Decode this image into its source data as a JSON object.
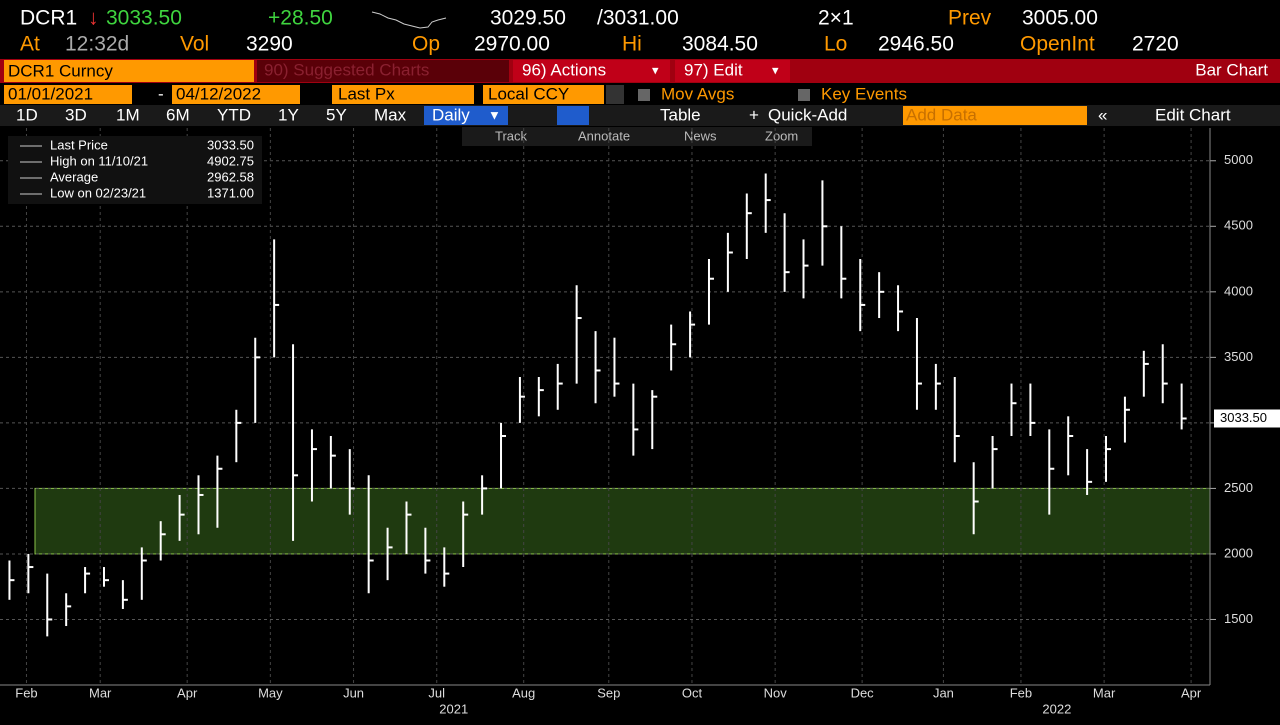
{
  "header": {
    "ticker": "DCR1",
    "last": "3033.50",
    "change": "+28.50",
    "bid": "3029.50",
    "ask": "/3031.00",
    "size": "2×1",
    "prev_label": "Prev",
    "prev": "3005.00",
    "at_label": "At",
    "time": "12:32d",
    "vol_label": "Vol",
    "vol": "3290",
    "open_label": "Op",
    "open": "2970.00",
    "high_label": "Hi",
    "high": "3084.50",
    "low_label": "Lo",
    "low": "2946.50",
    "oi_label": "OpenInt",
    "oi": "2720"
  },
  "toolbar": {
    "security": "DCR1 Curncy",
    "suggested": "90) Suggested Charts",
    "actions": "96) Actions",
    "edit": "97) Edit",
    "chart_type": "Bar Chart",
    "start": "01/01/2021",
    "end": "04/12/2022",
    "field": "Last Px",
    "currency": "Local CCY",
    "mov_avgs": "Mov Avgs",
    "key_events": "Key Events",
    "periods": [
      "1D",
      "3D",
      "1M",
      "6M",
      "YTD",
      "1Y",
      "5Y",
      "Max"
    ],
    "frequency": "Daily",
    "table": "Table",
    "quick_add": "Quick-Add",
    "add_data": "Add Data",
    "edit_chart": "Edit Chart",
    "tools": [
      "Track",
      "Annotate",
      "News",
      "Zoom"
    ]
  },
  "chart_data": {
    "type": "ohlc",
    "color": "#ffffff",
    "zone": {
      "low": 2000,
      "high": 2500,
      "color": "#1f3a10"
    },
    "legend": [
      {
        "label": "Last Price",
        "value": "3033.50"
      },
      {
        "label": "High on 11/10/21",
        "value": "4902.75"
      },
      {
        "label": "Average",
        "value": "2962.58"
      },
      {
        "label": "Low on 02/23/21",
        "value": "1371.00"
      }
    ],
    "highs": [
      1950,
      2000,
      1850,
      1700,
      1900,
      1900,
      1800,
      2050,
      2250,
      2450,
      2600,
      2750,
      3100,
      3650,
      4400,
      3600,
      2950,
      2900,
      2800,
      2600,
      2200,
      2400,
      2200,
      2050,
      2400,
      2600,
      3000,
      3350,
      3350,
      3450,
      4050,
      3700,
      3650,
      3300,
      3250,
      3750,
      3850,
      4250,
      4450,
      4750,
      4902.75,
      4600,
      4400,
      4850,
      4500,
      4250,
      4150,
      4050,
      3800,
      3450,
      3350,
      2700,
      2900,
      3300,
      3300,
      2950,
      3050,
      2800,
      2900,
      3200,
      3550,
      3600,
      3300
    ],
    "lows": [
      1650,
      1700,
      1371,
      1450,
      1700,
      1750,
      1580,
      1650,
      1950,
      2100,
      2150,
      2200,
      2700,
      3000,
      3500,
      2100,
      2400,
      2500,
      2300,
      1700,
      1800,
      2000,
      1850,
      1750,
      1900,
      2300,
      2500,
      3000,
      3050,
      3100,
      3300,
      3150,
      3200,
      2750,
      2800,
      3400,
      3500,
      3750,
      4000,
      4250,
      4450,
      4000,
      3950,
      4200,
      3950,
      3700,
      3800,
      3700,
      3100,
      3100,
      2700,
      2150,
      2500,
      2900,
      2900,
      2300,
      2600,
      2450,
      2550,
      2850,
      3200,
      3150,
      2950
    ],
    "closes": [
      1800,
      1900,
      1500,
      1600,
      1850,
      1800,
      1650,
      1950,
      2150,
      2300,
      2450,
      2650,
      3000,
      3500,
      3900,
      2600,
      2800,
      2750,
      2500,
      1950,
      2050,
      2300,
      1950,
      1850,
      2300,
      2500,
      2900,
      3200,
      3250,
      3300,
      3800,
      3400,
      3300,
      2950,
      3200,
      3600,
      3750,
      4100,
      4300,
      4600,
      4700,
      4150,
      4200,
      4500,
      4100,
      3900,
      4000,
      3850,
      3300,
      3300,
      2900,
      2400,
      2800,
      3150,
      3000,
      2650,
      2900,
      2550,
      2800,
      3100,
      3450,
      3300,
      3033.5
    ],
    "last_marker": {
      "value": 3033.5,
      "label": "3033.50"
    },
    "ylim": [
      1000,
      5250
    ],
    "yticks": [
      1500,
      2000,
      2500,
      3000,
      3500,
      4000,
      4500,
      5000
    ],
    "xlim": [
      -0.5,
      63.5
    ],
    "xticks": [
      {
        "value": 0.9,
        "label": "Feb"
      },
      {
        "value": 4.8,
        "label": "Mar"
      },
      {
        "value": 9.4,
        "label": "Apr"
      },
      {
        "value": 13.8,
        "label": "May"
      },
      {
        "value": 18.2,
        "label": "Jun"
      },
      {
        "value": 22.6,
        "label": "Jul"
      },
      {
        "value": 27.2,
        "label": "Aug"
      },
      {
        "value": 31.7,
        "label": "Sep"
      },
      {
        "value": 36.1,
        "label": "Oct"
      },
      {
        "value": 40.5,
        "label": "Nov"
      },
      {
        "value": 45.1,
        "label": "Dec"
      },
      {
        "value": 49.4,
        "label": "Jan"
      },
      {
        "value": 53.5,
        "label": "Feb"
      },
      {
        "value": 57.9,
        "label": "Mar"
      },
      {
        "value": 62.5,
        "label": "Apr"
      }
    ],
    "xgroups": [
      {
        "value": 23.5,
        "label": "2021"
      },
      {
        "value": 55.4,
        "label": "2022"
      }
    ],
    "grid": true
  }
}
